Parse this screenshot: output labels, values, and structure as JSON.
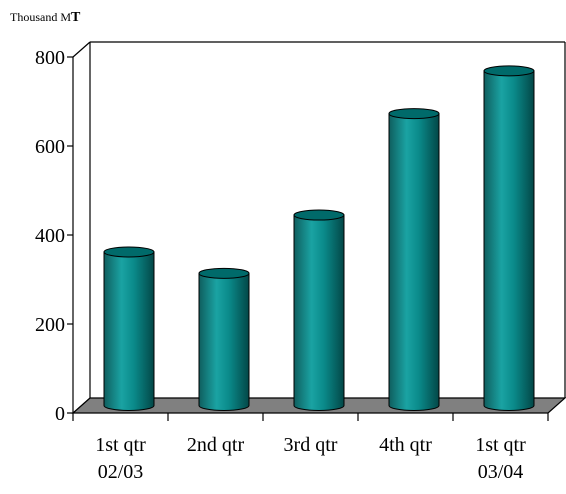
{
  "chart_data": {
    "type": "bar",
    "style": "3d-cylinder",
    "title": "",
    "ylabel": "Thousand MT",
    "ylabel_parts": {
      "main": "Thousand M",
      "sub": "T"
    },
    "xlabel": "",
    "categories": [
      [
        "1st qtr",
        "02/03"
      ],
      [
        "2nd qtr",
        ""
      ],
      [
        "3rd qtr",
        ""
      ],
      [
        "4th qtr",
        ""
      ],
      [
        "1st qtr",
        "03/04"
      ]
    ],
    "values": [
      345,
      297,
      428,
      656,
      752
    ],
    "ylim": [
      0,
      800
    ],
    "yticks": [
      0,
      200,
      400,
      600,
      800
    ],
    "grid": false,
    "legend": "none",
    "colors": {
      "bar_body": "#008080",
      "bar_top": "#006a6a",
      "floor": "#808080",
      "axis": "#000000"
    }
  }
}
